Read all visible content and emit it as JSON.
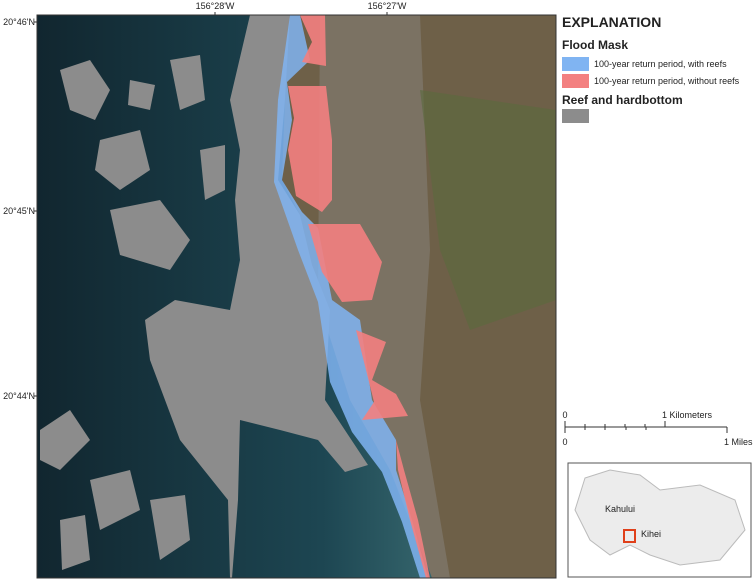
{
  "map": {
    "lon_labels": [
      "156°28'W",
      "156°27'W"
    ],
    "lat_labels": [
      "20°46'N",
      "20°45'N",
      "20°44'N"
    ]
  },
  "legend": {
    "title": "EXPLANATION",
    "flood_mask": {
      "heading": "Flood Mask",
      "items": [
        {
          "label": "100-year return period, with reefs",
          "color": "#80b4f2"
        },
        {
          "label": "100-year return period, without reefs",
          "color": "#f38080"
        }
      ]
    },
    "reef": {
      "heading": "Reef and hardbottom",
      "color": "#8c8c8c"
    }
  },
  "scale_bar": {
    "km": {
      "start": "0",
      "end": "1 Kilometers"
    },
    "mi": {
      "start": "0",
      "end": "1 Miles"
    }
  },
  "inset": {
    "labels": [
      "Kahului",
      "Kihei"
    ]
  }
}
